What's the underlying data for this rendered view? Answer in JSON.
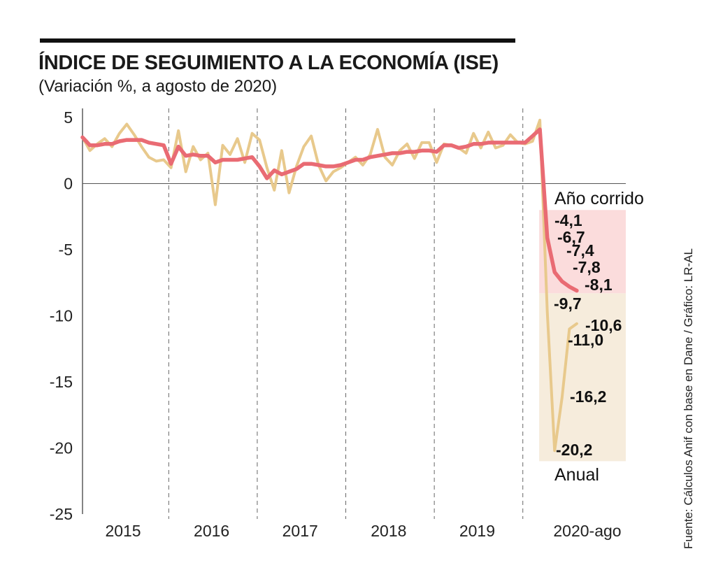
{
  "header": {
    "title": "ÍNDICE DE SEGUIMIENTO A LA ECONOMÍA (ISE)",
    "subtitle": "(Variación %, a agosto de 2020)"
  },
  "source": "Fuente: Cálculos Anif con base en Dane / Gráfico: LR-AL",
  "chart_data": {
    "type": "line",
    "title": "ÍNDICE DE SEGUIMIENTO A LA ECONOMÍA (ISE)",
    "subtitle": "(Variación %, a agosto de 2020)",
    "ylim": [
      -25,
      5
    ],
    "y_ticks": [
      5,
      0,
      -5,
      -10,
      -15,
      -20,
      -25
    ],
    "y_tick_labels": [
      "5",
      "0",
      "-5",
      "-10",
      "-15",
      "-20",
      "-25"
    ],
    "x_labels": [
      "2015",
      "2016",
      "2017",
      "2018",
      "2019",
      "2020-ago"
    ],
    "year_divider_after_months": [
      12,
      24,
      36,
      48,
      60
    ],
    "grid": false,
    "series": [
      {
        "key": "anual",
        "name": "Anual",
        "color": "#e8c98c",
        "values": [
          3.5,
          2.5,
          3.0,
          3.4,
          2.8,
          3.8,
          4.5,
          3.7,
          2.8,
          2.0,
          1.7,
          1.8,
          1.2,
          4.0,
          0.9,
          2.8,
          1.8,
          2.3,
          -1.6,
          2.9,
          2.2,
          3.4,
          1.6,
          3.8,
          3.3,
          1.2,
          -0.5,
          2.5,
          -0.7,
          1.3,
          2.8,
          3.6,
          1.4,
          0.2,
          0.9,
          1.2,
          1.6,
          2.0,
          1.4,
          2.2,
          4.1,
          2.0,
          1.4,
          2.5,
          3.0,
          1.9,
          3.1,
          3.1,
          1.6,
          3.0,
          2.9,
          2.7,
          2.3,
          3.8,
          2.7,
          3.9,
          2.7,
          2.9,
          3.7,
          3.1,
          3.0,
          3.2,
          4.8,
          -9.7,
          -20.2,
          -16.2,
          -11.0,
          -10.6
        ],
        "labeled_points": [
          {
            "month": 64,
            "label": "-20,2"
          },
          {
            "month": 65,
            "label": "-16,2"
          },
          {
            "month": 66,
            "label": "-11,0"
          },
          {
            "month": 67,
            "label": "-10,6"
          }
        ]
      },
      {
        "key": "corrido",
        "name": "Año corrido",
        "color": "#e96b73",
        "values": [
          3.5,
          2.9,
          2.9,
          3.0,
          3.0,
          3.2,
          3.3,
          3.3,
          3.3,
          3.1,
          3.0,
          2.9,
          1.5,
          2.8,
          2.1,
          2.2,
          2.1,
          2.1,
          1.6,
          1.8,
          1.8,
          1.8,
          1.9,
          2.0,
          1.3,
          0.4,
          1.0,
          0.7,
          0.9,
          1.1,
          1.5,
          1.5,
          1.4,
          1.3,
          1.3,
          1.4,
          1.6,
          1.8,
          1.8,
          2.0,
          2.1,
          2.2,
          2.3,
          2.3,
          2.4,
          2.4,
          2.5,
          2.5,
          2.4,
          2.9,
          2.9,
          2.7,
          2.8,
          3.0,
          3.0,
          3.1,
          3.1,
          3.1,
          3.1,
          3.1,
          3.1,
          3.6,
          4.1,
          -4.1,
          -6.7,
          -7.4,
          -7.8,
          -8.1
        ],
        "labeled_points": [
          {
            "month": 63,
            "label": "-4,1"
          },
          {
            "month": 64,
            "label": "-6,7"
          },
          {
            "month": 65,
            "label": "-7,4"
          },
          {
            "month": 66,
            "label": "-7,8"
          },
          {
            "month": 67,
            "label": "-8,1"
          }
        ]
      }
    ],
    "annotations": {
      "anual_first_label": "-9,7",
      "anual_label": "Anual",
      "corrido_label": "Año corrido"
    },
    "colors": {
      "corrido_band": "#fbdcdc",
      "anual_band": "#f6ecdc"
    }
  }
}
